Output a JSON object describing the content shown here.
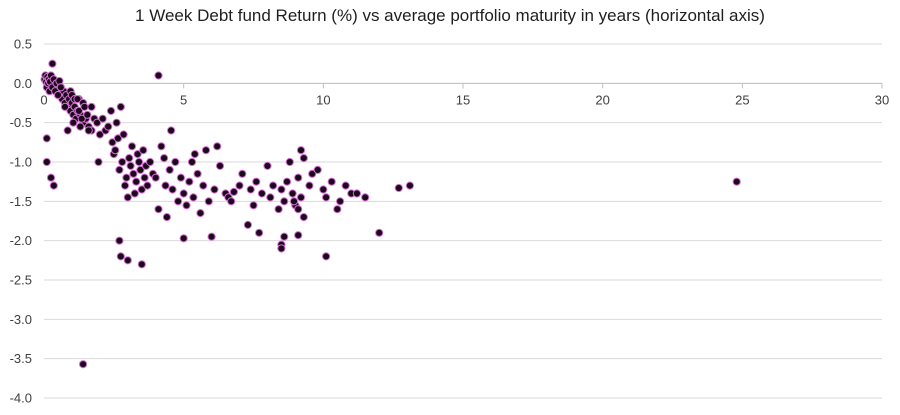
{
  "chart_data": {
    "type": "scatter",
    "title": "1 Week Debt fund Return (%) vs average portfolio maturity in years (horizontal axis)",
    "xlabel": "",
    "ylabel": "",
    "xlim": [
      0,
      30
    ],
    "ylim": [
      -4.0,
      0.5
    ],
    "x_ticks": [
      0,
      5,
      10,
      15,
      20,
      25,
      30
    ],
    "y_ticks": [
      0.5,
      0.0,
      -0.5,
      -1.0,
      -1.5,
      -2.0,
      -2.5,
      -3.0,
      -3.5,
      -4.0
    ],
    "x_tick_labels": [
      "0",
      "5",
      "10",
      "15",
      "20",
      "25",
      "30"
    ],
    "y_tick_labels": [
      "0.5",
      "0.0",
      "-0.5",
      "-1.0",
      "-1.5",
      "-2.0",
      "-2.5",
      "-3.0",
      "-3.5",
      "-4.0"
    ],
    "grid": "horizontal",
    "marker_color": "#1a0a1a",
    "marker_edge_color": "#d76fd7",
    "points": [
      [
        0.02,
        0.05
      ],
      [
        0.05,
        0.1
      ],
      [
        0.08,
        0.02
      ],
      [
        0.1,
        -0.05
      ],
      [
        0.12,
        0.08
      ],
      [
        0.15,
        0.0
      ],
      [
        0.18,
        0.05
      ],
      [
        0.2,
        -0.1
      ],
      [
        0.22,
        0.02
      ],
      [
        0.25,
        0.1
      ],
      [
        0.3,
        -0.05
      ],
      [
        0.35,
        0.05
      ],
      [
        0.4,
        -0.1
      ],
      [
        0.45,
        0.0
      ],
      [
        0.5,
        -0.15
      ],
      [
        0.55,
        0.03
      ],
      [
        0.6,
        -0.05
      ],
      [
        0.65,
        -0.2
      ],
      [
        0.7,
        -0.1
      ],
      [
        0.75,
        -0.25
      ],
      [
        0.8,
        -0.15
      ],
      [
        0.85,
        -0.3
      ],
      [
        0.9,
        -0.2
      ],
      [
        0.95,
        -0.35
      ],
      [
        1.0,
        -0.25
      ],
      [
        1.05,
        -0.4
      ],
      [
        1.1,
        -0.3
      ],
      [
        1.15,
        -0.45
      ],
      [
        1.2,
        -0.35
      ],
      [
        1.25,
        -0.2
      ],
      [
        1.3,
        -0.4
      ],
      [
        1.4,
        -0.5
      ],
      [
        1.5,
        -0.45
      ],
      [
        1.6,
        -0.55
      ],
      [
        1.7,
        -0.6
      ],
      [
        0.1,
        -0.7
      ],
      [
        0.1,
        -1.0
      ],
      [
        0.25,
        -1.2
      ],
      [
        0.3,
        0.25
      ],
      [
        0.35,
        -1.3
      ],
      [
        0.5,
        -0.15
      ],
      [
        0.6,
        -0.05
      ],
      [
        0.75,
        -0.3
      ],
      [
        0.85,
        -0.6
      ],
      [
        0.95,
        -0.1
      ],
      [
        1.0,
        -0.15
      ],
      [
        1.05,
        -0.5
      ],
      [
        1.1,
        -0.2
      ],
      [
        1.2,
        -0.2
      ],
      [
        1.25,
        -0.35
      ],
      [
        1.3,
        -0.55
      ],
      [
        1.35,
        -0.45
      ],
      [
        1.4,
        -0.25
      ],
      [
        1.45,
        -0.3
      ],
      [
        1.55,
        -0.4
      ],
      [
        1.6,
        -0.6
      ],
      [
        1.7,
        -0.3
      ],
      [
        1.8,
        -0.45
      ],
      [
        1.9,
        -0.5
      ],
      [
        1.95,
        -1.0
      ],
      [
        2.0,
        -0.65
      ],
      [
        2.1,
        -0.45
      ],
      [
        2.2,
        -0.6
      ],
      [
        2.3,
        -0.55
      ],
      [
        2.4,
        -0.35
      ],
      [
        2.45,
        -0.75
      ],
      [
        2.5,
        -0.9
      ],
      [
        2.55,
        -0.85
      ],
      [
        2.6,
        -0.5
      ],
      [
        2.65,
        -0.7
      ],
      [
        2.7,
        -1.1
      ],
      [
        2.75,
        -0.3
      ],
      [
        2.8,
        -1.0
      ],
      [
        2.85,
        -0.65
      ],
      [
        2.9,
        -1.3
      ],
      [
        2.95,
        -1.2
      ],
      [
        3.0,
        -1.45
      ],
      [
        3.05,
        -0.95
      ],
      [
        3.1,
        -1.05
      ],
      [
        3.15,
        -0.8
      ],
      [
        3.2,
        -1.15
      ],
      [
        3.25,
        -1.4
      ],
      [
        3.3,
        -1.25
      ],
      [
        3.35,
        -0.9
      ],
      [
        3.4,
        -1.0
      ],
      [
        3.45,
        -1.1
      ],
      [
        3.5,
        -1.35
      ],
      [
        3.55,
        -0.85
      ],
      [
        3.6,
        -1.2
      ],
      [
        3.65,
        -1.05
      ],
      [
        3.7,
        -1.3
      ],
      [
        3.8,
        -1.0
      ],
      [
        3.9,
        -1.15
      ],
      [
        4.0,
        -1.2
      ],
      [
        4.1,
        -1.6
      ],
      [
        4.2,
        -0.8
      ],
      [
        4.3,
        -0.95
      ],
      [
        4.35,
        -1.3
      ],
      [
        4.4,
        -1.7
      ],
      [
        4.5,
        -1.1
      ],
      [
        4.55,
        -0.6
      ],
      [
        4.6,
        -1.35
      ],
      [
        4.7,
        -1.0
      ],
      [
        4.8,
        -1.5
      ],
      [
        4.9,
        -1.2
      ],
      [
        5.0,
        -1.4
      ],
      [
        5.1,
        -1.55
      ],
      [
        5.2,
        -1.25
      ],
      [
        5.3,
        -1.0
      ],
      [
        5.35,
        -1.45
      ],
      [
        5.4,
        -0.9
      ],
      [
        5.5,
        -1.15
      ],
      [
        5.6,
        -1.65
      ],
      [
        5.7,
        -1.3
      ],
      [
        5.8,
        -0.85
      ],
      [
        5.9,
        -1.5
      ],
      [
        6.0,
        -1.95
      ],
      [
        6.1,
        -1.35
      ],
      [
        6.2,
        -0.8
      ],
      [
        6.3,
        -1.05
      ],
      [
        4.1,
        0.1
      ],
      [
        2.7,
        -2.0
      ],
      [
        2.75,
        -2.2
      ],
      [
        3.0,
        -2.25
      ],
      [
        3.5,
        -2.3
      ],
      [
        5.0,
        -1.97
      ],
      [
        1.4,
        -3.57
      ],
      [
        6.5,
        -1.4
      ],
      [
        6.6,
        -1.45
      ],
      [
        6.7,
        -1.5
      ],
      [
        6.8,
        -1.38
      ],
      [
        7.0,
        -1.3
      ],
      [
        7.1,
        -1.15
      ],
      [
        7.3,
        -1.8
      ],
      [
        7.4,
        -1.35
      ],
      [
        7.5,
        -1.55
      ],
      [
        7.6,
        -1.25
      ],
      [
        7.7,
        -1.9
      ],
      [
        7.8,
        -1.4
      ],
      [
        8.0,
        -1.05
      ],
      [
        8.1,
        -1.45
      ],
      [
        8.2,
        -1.3
      ],
      [
        8.4,
        -1.6
      ],
      [
        8.5,
        -1.35
      ],
      [
        8.6,
        -1.5
      ],
      [
        8.7,
        -1.25
      ],
      [
        8.8,
        -1.0
      ],
      [
        8.9,
        -1.4
      ],
      [
        9.0,
        -1.55
      ],
      [
        9.1,
        -1.2
      ],
      [
        9.2,
        -1.45
      ],
      [
        9.3,
        -1.7
      ],
      [
        9.5,
        -1.3
      ],
      [
        9.6,
        -1.15
      ],
      [
        9.8,
        -1.1
      ],
      [
        10.0,
        -1.35
      ],
      [
        10.1,
        -1.45
      ],
      [
        10.3,
        -1.25
      ],
      [
        10.5,
        -1.6
      ],
      [
        10.6,
        -1.5
      ],
      [
        10.8,
        -1.3
      ],
      [
        11.0,
        -1.4
      ],
      [
        11.2,
        -1.4
      ],
      [
        11.5,
        -1.45
      ],
      [
        12.0,
        -1.9
      ],
      [
        12.7,
        -1.33
      ],
      [
        13.1,
        -1.3
      ],
      [
        8.5,
        -2.05
      ],
      [
        8.5,
        -2.1
      ],
      [
        8.6,
        -1.95
      ],
      [
        9.1,
        -1.93
      ],
      [
        10.1,
        -2.2
      ],
      [
        9.2,
        -0.85
      ],
      [
        9.3,
        -0.95
      ],
      [
        9.0,
        -1.55
      ],
      [
        8.95,
        -1.5
      ],
      [
        9.1,
        -1.6
      ],
      [
        24.8,
        -1.25
      ]
    ]
  }
}
